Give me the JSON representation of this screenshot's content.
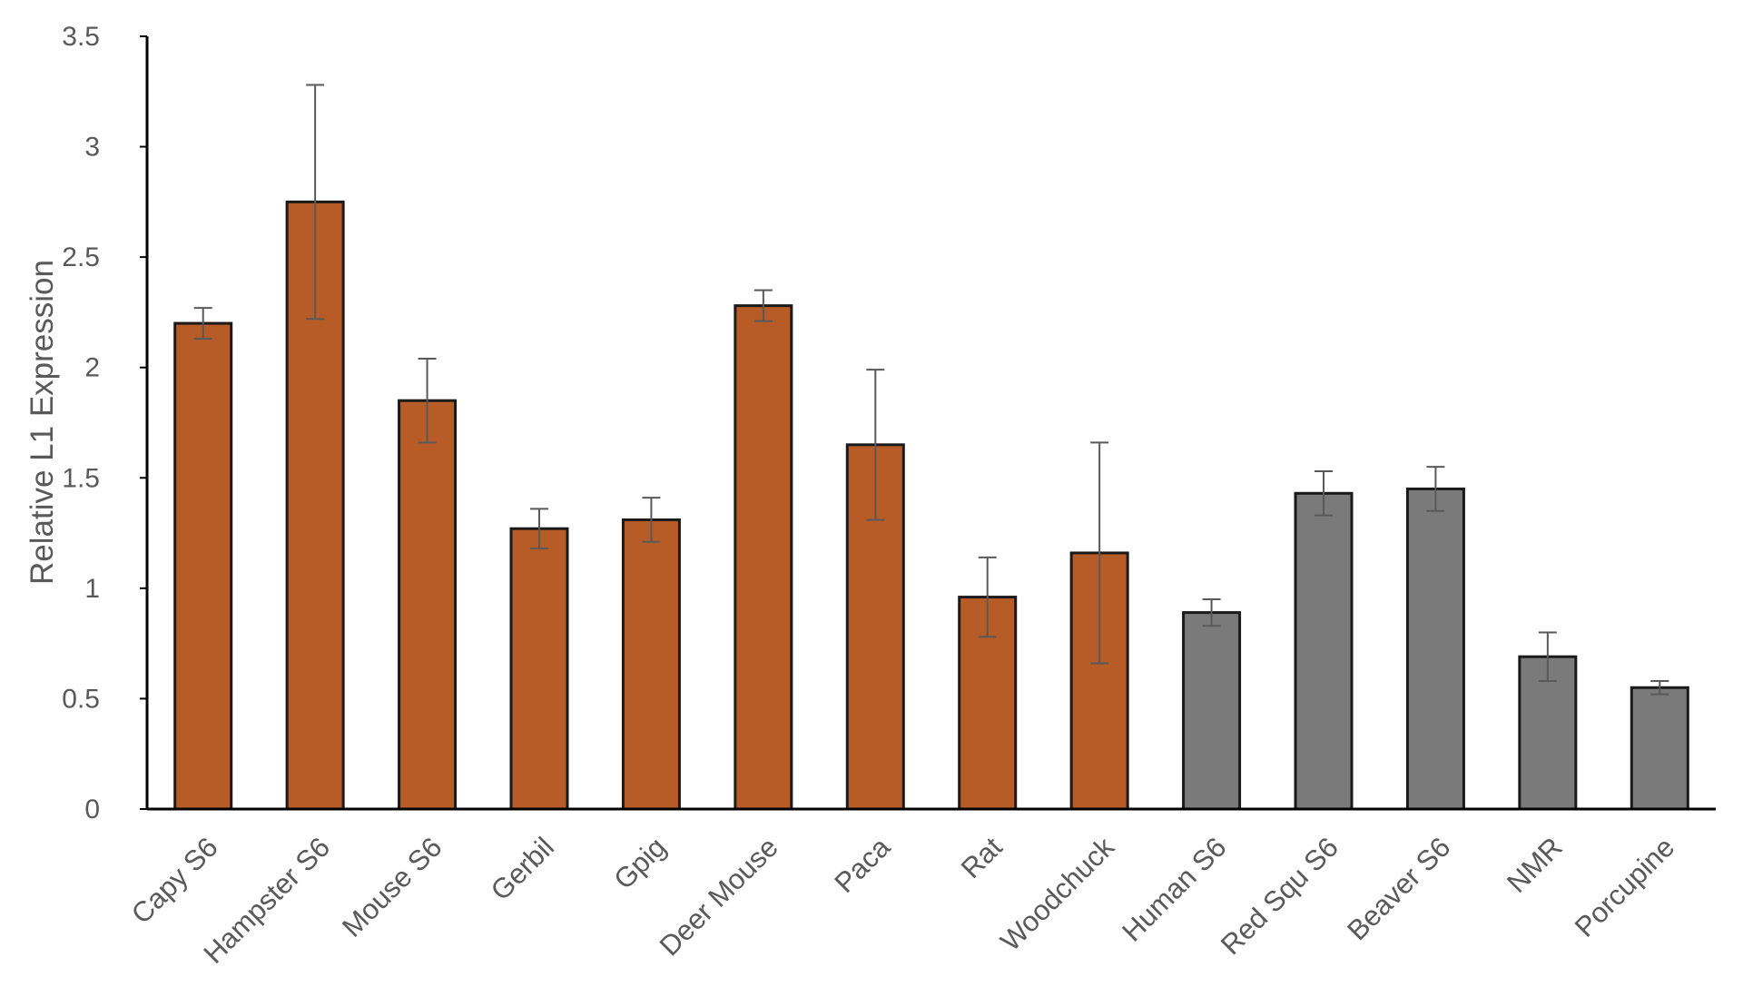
{
  "chart_data": {
    "type": "bar",
    "title": "",
    "xlabel": "",
    "ylabel": "Relative L1 Expression",
    "ylim": [
      0,
      3.5
    ],
    "yticks": [
      "0",
      "0.5",
      "1",
      "1.5",
      "2",
      "2.5",
      "3",
      "3.5"
    ],
    "grid": false,
    "legend": "none",
    "categories": [
      "Capy S6",
      "Hampster S6",
      "Mouse S6",
      "Gerbil",
      "Gpig",
      "Deer Mouse",
      "Paca",
      "Rat",
      "Woodchuck",
      "Human S6",
      "Red Squ S6",
      "Beaver S6",
      "NMR",
      "Porcupine"
    ],
    "values": [
      2.2,
      2.75,
      1.85,
      1.27,
      1.31,
      2.28,
      1.65,
      0.96,
      1.16,
      0.89,
      1.43,
      1.45,
      0.69,
      0.55
    ],
    "errors": [
      0.07,
      0.53,
      0.19,
      0.09,
      0.1,
      0.07,
      0.34,
      0.18,
      0.5,
      0.06,
      0.1,
      0.1,
      0.11,
      0.03
    ],
    "bar_colors": [
      "#B85C27",
      "#B85C27",
      "#B85C27",
      "#B85C27",
      "#B85C27",
      "#B85C27",
      "#B85C27",
      "#B85C27",
      "#B85C27",
      "#7A7A7A",
      "#7A7A7A",
      "#7A7A7A",
      "#7A7A7A",
      "#7A7A7A"
    ],
    "colors": {
      "highlight": "#B85C27",
      "neutral": "#7A7A7A",
      "bar_outline": "#1A1A1A",
      "error_bar": "#595959",
      "axis": "#000000",
      "text": "#595959"
    }
  }
}
